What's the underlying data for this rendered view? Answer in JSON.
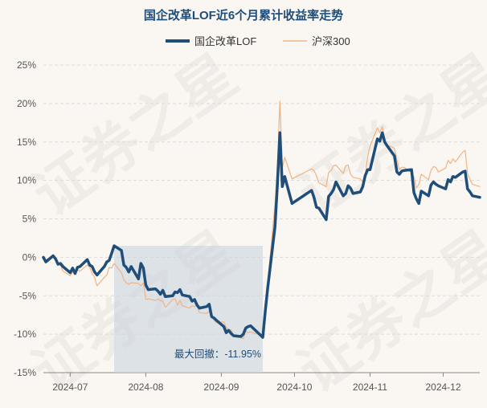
{
  "chart_data": {
    "type": "line",
    "title": "国企改革LOF近6个月累计收益率走势",
    "legend": {
      "placement": "top-center",
      "entries": [
        {
          "name": "国企改革LOF",
          "color": "#1f4e7a"
        },
        {
          "name": "沪深300",
          "color": "#f0b483"
        }
      ]
    },
    "x_ticks": [
      "2024-07",
      "2024-08",
      "2024-09",
      "2024-10",
      "2024-11",
      "2024-12"
    ],
    "y_ticks": [
      "25%",
      "20%",
      "15%",
      "10%",
      "5%",
      "0%",
      "-5%",
      "-10%",
      "-15%"
    ],
    "ylim": [
      -15,
      25
    ],
    "grid": true,
    "date_range": [
      "2024-06-20",
      "2024-12-16"
    ],
    "drawdown": {
      "label": "最大回撤：-11.95%",
      "start": "2024-07-19",
      "end": "2024-09-18",
      "fill_color": "#c9d3dd"
    },
    "series": [
      {
        "name": "国企改革LOF",
        "color": "#1f4e7a",
        "points": [
          [
            "2024-06-20",
            0.0
          ],
          [
            "2024-06-21",
            -0.6
          ],
          [
            "2024-06-24",
            0.2
          ],
          [
            "2024-06-25",
            -0.2
          ],
          [
            "2024-06-26",
            -0.9
          ],
          [
            "2024-06-27",
            -0.8
          ],
          [
            "2024-06-28",
            -1.2
          ],
          [
            "2024-07-01",
            -2.0
          ],
          [
            "2024-07-02",
            -1.4
          ],
          [
            "2024-07-03",
            -2.1
          ],
          [
            "2024-07-04",
            -1.3
          ],
          [
            "2024-07-05",
            -1.2
          ],
          [
            "2024-07-08",
            -0.3
          ],
          [
            "2024-07-09",
            -1.0
          ],
          [
            "2024-07-10",
            -1.2
          ],
          [
            "2024-07-11",
            -1.9
          ],
          [
            "2024-07-12",
            -2.3
          ],
          [
            "2024-07-15",
            -1.2
          ],
          [
            "2024-07-16",
            -0.6
          ],
          [
            "2024-07-17",
            -0.4
          ],
          [
            "2024-07-18",
            0.5
          ],
          [
            "2024-07-19",
            1.5
          ],
          [
            "2024-07-22",
            0.9
          ],
          [
            "2024-07-23",
            -1.0
          ],
          [
            "2024-07-24",
            -1.3
          ],
          [
            "2024-07-25",
            -1.9
          ],
          [
            "2024-07-26",
            -1.2
          ],
          [
            "2024-07-29",
            -2.8
          ],
          [
            "2024-07-30",
            -0.8
          ],
          [
            "2024-07-31",
            -1.4
          ],
          [
            "2024-08-01",
            -3.6
          ],
          [
            "2024-08-02",
            -4.2
          ],
          [
            "2024-08-05",
            -4.1
          ],
          [
            "2024-08-06",
            -4.4
          ],
          [
            "2024-08-07",
            -4.8
          ],
          [
            "2024-08-08",
            -4.3
          ],
          [
            "2024-08-09",
            -5.1
          ],
          [
            "2024-08-12",
            -5.0
          ],
          [
            "2024-08-13",
            -4.5
          ],
          [
            "2024-08-14",
            -4.6
          ],
          [
            "2024-08-15",
            -4.2
          ],
          [
            "2024-08-16",
            -4.9
          ],
          [
            "2024-08-19",
            -5.1
          ],
          [
            "2024-08-20",
            -5.7
          ],
          [
            "2024-08-21",
            -5.5
          ],
          [
            "2024-08-22",
            -6.2
          ],
          [
            "2024-08-23",
            -6.6
          ],
          [
            "2024-08-26",
            -6.4
          ],
          [
            "2024-08-27",
            -6.1
          ],
          [
            "2024-08-28",
            -7.7
          ],
          [
            "2024-08-29",
            -7.9
          ],
          [
            "2024-08-30",
            -8.2
          ],
          [
            "2024-09-02",
            -9.0
          ],
          [
            "2024-09-03",
            -9.8
          ],
          [
            "2024-09-04",
            -9.5
          ],
          [
            "2024-09-05",
            -9.9
          ],
          [
            "2024-09-06",
            -10.2
          ],
          [
            "2024-09-09",
            -10.3
          ],
          [
            "2024-09-10",
            -10.0
          ],
          [
            "2024-09-11",
            -9.2
          ],
          [
            "2024-09-12",
            -9.0
          ],
          [
            "2024-09-13",
            -8.9
          ],
          [
            "2024-09-18",
            -10.4
          ],
          [
            "2024-09-19",
            -7.0
          ],
          [
            "2024-09-20",
            -4.0
          ],
          [
            "2024-09-23",
            4.0
          ],
          [
            "2024-09-24",
            9.5
          ],
          [
            "2024-09-25",
            16.2
          ],
          [
            "2024-09-26",
            9.2
          ],
          [
            "2024-09-27",
            10.5
          ],
          [
            "2024-09-30",
            7.0
          ],
          [
            "2024-10-08",
            8.7
          ],
          [
            "2024-10-09",
            7.8
          ],
          [
            "2024-10-10",
            6.5
          ],
          [
            "2024-10-11",
            6.4
          ],
          [
            "2024-10-14",
            4.9
          ],
          [
            "2024-10-15",
            7.9
          ],
          [
            "2024-10-16",
            8.3
          ],
          [
            "2024-10-17",
            8.8
          ],
          [
            "2024-10-18",
            9.8
          ],
          [
            "2024-10-21",
            8.0
          ],
          [
            "2024-10-22",
            8.3
          ],
          [
            "2024-10-23",
            9.3
          ],
          [
            "2024-10-24",
            9.0
          ],
          [
            "2024-10-25",
            8.3
          ],
          [
            "2024-10-28",
            8.5
          ],
          [
            "2024-10-29",
            9.2
          ],
          [
            "2024-10-30",
            10.6
          ],
          [
            "2024-10-31",
            11.4
          ],
          [
            "2024-11-01",
            11.4
          ],
          [
            "2024-11-04",
            15.4
          ],
          [
            "2024-11-05",
            15.1
          ],
          [
            "2024-11-06",
            16.2
          ],
          [
            "2024-11-07",
            15.0
          ],
          [
            "2024-11-08",
            14.5
          ],
          [
            "2024-11-11",
            13.2
          ],
          [
            "2024-11-12",
            11.1
          ],
          [
            "2024-11-13",
            10.8
          ],
          [
            "2024-11-14",
            11.2
          ],
          [
            "2024-11-15",
            11.3
          ],
          [
            "2024-11-18",
            11.4
          ],
          [
            "2024-11-19",
            8.4
          ],
          [
            "2024-11-20",
            7.6
          ],
          [
            "2024-11-21",
            7.0
          ],
          [
            "2024-11-22",
            8.6
          ],
          [
            "2024-11-25",
            8.0
          ],
          [
            "2024-11-26",
            9.4
          ],
          [
            "2024-11-27",
            9.8
          ],
          [
            "2024-11-28",
            9.5
          ],
          [
            "2024-11-29",
            9.3
          ],
          [
            "2024-12-02",
            8.9
          ],
          [
            "2024-12-03",
            10.1
          ],
          [
            "2024-12-04",
            9.8
          ],
          [
            "2024-12-05",
            10.5
          ],
          [
            "2024-12-06",
            10.4
          ],
          [
            "2024-12-09",
            11.1
          ],
          [
            "2024-12-10",
            11.2
          ],
          [
            "2024-12-11",
            8.9
          ],
          [
            "2024-12-12",
            8.5
          ],
          [
            "2024-12-13",
            8.0
          ],
          [
            "2024-12-16",
            7.8
          ]
        ]
      },
      {
        "name": "沪深300",
        "color": "#f0b483",
        "points": [
          [
            "2024-06-20",
            0.0
          ],
          [
            "2024-06-21",
            -0.3
          ],
          [
            "2024-06-24",
            0.1
          ],
          [
            "2024-06-25",
            -0.5
          ],
          [
            "2024-06-26",
            -0.7
          ],
          [
            "2024-06-27",
            -1.0
          ],
          [
            "2024-06-28",
            -1.8
          ],
          [
            "2024-07-01",
            -2.4
          ],
          [
            "2024-07-02",
            -1.9
          ],
          [
            "2024-07-03",
            -2.0
          ],
          [
            "2024-07-04",
            -1.6
          ],
          [
            "2024-07-05",
            -1.8
          ],
          [
            "2024-07-08",
            -1.0
          ],
          [
            "2024-07-09",
            -1.3
          ],
          [
            "2024-07-10",
            -2.1
          ],
          [
            "2024-07-11",
            -2.6
          ],
          [
            "2024-07-12",
            -3.7
          ],
          [
            "2024-07-15",
            -2.6
          ],
          [
            "2024-07-16",
            -2.3
          ],
          [
            "2024-07-17",
            -1.3
          ],
          [
            "2024-07-18",
            -1.4
          ],
          [
            "2024-07-19",
            -0.8
          ],
          [
            "2024-07-22",
            -2.0
          ],
          [
            "2024-07-23",
            -2.9
          ],
          [
            "2024-07-24",
            -3.3
          ],
          [
            "2024-07-25",
            -3.5
          ],
          [
            "2024-07-26",
            -3.3
          ],
          [
            "2024-07-29",
            -3.4
          ],
          [
            "2024-07-30",
            -3.7
          ],
          [
            "2024-07-31",
            -3.3
          ],
          [
            "2024-08-01",
            -5.5
          ],
          [
            "2024-08-02",
            -5.4
          ],
          [
            "2024-08-05",
            -5.6
          ],
          [
            "2024-08-06",
            -5.4
          ],
          [
            "2024-08-07",
            -5.6
          ],
          [
            "2024-08-08",
            -5.7
          ],
          [
            "2024-08-09",
            -6.5
          ],
          [
            "2024-08-12",
            -5.5
          ],
          [
            "2024-08-13",
            -5.4
          ],
          [
            "2024-08-14",
            -6.2
          ],
          [
            "2024-08-15",
            -5.6
          ],
          [
            "2024-08-16",
            -6.3
          ],
          [
            "2024-08-19",
            -6.6
          ],
          [
            "2024-08-20",
            -6.3
          ],
          [
            "2024-08-21",
            -6.4
          ],
          [
            "2024-08-22",
            -6.2
          ],
          [
            "2024-08-23",
            -7.2
          ],
          [
            "2024-08-26",
            -7.3
          ],
          [
            "2024-08-27",
            -7.0
          ],
          [
            "2024-08-28",
            -7.3
          ],
          [
            "2024-08-29",
            -8.2
          ],
          [
            "2024-08-30",
            -8.5
          ],
          [
            "2024-09-02",
            -8.4
          ],
          [
            "2024-09-03",
            -9.1
          ],
          [
            "2024-09-04",
            -9.6
          ],
          [
            "2024-09-05",
            -9.4
          ],
          [
            "2024-09-06",
            -10.1
          ],
          [
            "2024-09-09",
            -10.4
          ],
          [
            "2024-09-10",
            -10.6
          ],
          [
            "2024-09-11",
            -9.6
          ],
          [
            "2024-09-12",
            -9.8
          ],
          [
            "2024-09-13",
            -9.7
          ],
          [
            "2024-09-18",
            -10.2
          ],
          [
            "2024-09-19",
            -7.1
          ],
          [
            "2024-09-20",
            -3.5
          ],
          [
            "2024-09-23",
            7.0
          ],
          [
            "2024-09-24",
            12.0
          ],
          [
            "2024-09-25",
            20.3
          ],
          [
            "2024-09-26",
            11.6
          ],
          [
            "2024-09-27",
            13.0
          ],
          [
            "2024-09-30",
            10.2
          ],
          [
            "2024-10-08",
            11.5
          ],
          [
            "2024-10-09",
            11.3
          ],
          [
            "2024-10-10",
            10.6
          ],
          [
            "2024-10-11",
            9.7
          ],
          [
            "2024-10-14",
            9.2
          ],
          [
            "2024-10-15",
            11.0
          ],
          [
            "2024-10-16",
            11.3
          ],
          [
            "2024-10-17",
            11.9
          ],
          [
            "2024-10-18",
            12.0
          ],
          [
            "2024-10-21",
            10.9
          ],
          [
            "2024-10-22",
            11.9
          ],
          [
            "2024-10-23",
            12.0
          ],
          [
            "2024-10-24",
            10.8
          ],
          [
            "2024-10-25",
            10.4
          ],
          [
            "2024-10-28",
            10.2
          ],
          [
            "2024-10-29",
            9.8
          ],
          [
            "2024-10-30",
            10.7
          ],
          [
            "2024-10-31",
            13.0
          ],
          [
            "2024-11-01",
            14.5
          ],
          [
            "2024-11-04",
            16.8
          ],
          [
            "2024-11-05",
            16.2
          ],
          [
            "2024-11-06",
            17.0
          ],
          [
            "2024-11-07",
            15.4
          ],
          [
            "2024-11-08",
            14.6
          ],
          [
            "2024-11-11",
            14.2
          ],
          [
            "2024-11-12",
            12.6
          ],
          [
            "2024-11-13",
            11.4
          ],
          [
            "2024-11-14",
            11.7
          ],
          [
            "2024-11-15",
            11.7
          ],
          [
            "2024-11-18",
            11.0
          ],
          [
            "2024-11-19",
            10.5
          ],
          [
            "2024-11-20",
            9.0
          ],
          [
            "2024-11-21",
            9.5
          ],
          [
            "2024-11-22",
            10.8
          ],
          [
            "2024-11-25",
            10.1
          ],
          [
            "2024-11-26",
            11.3
          ],
          [
            "2024-11-27",
            11.8
          ],
          [
            "2024-11-28",
            11.7
          ],
          [
            "2024-11-29",
            11.1
          ],
          [
            "2024-12-02",
            11.6
          ],
          [
            "2024-12-03",
            12.6
          ],
          [
            "2024-12-04",
            12.2
          ],
          [
            "2024-12-05",
            12.8
          ],
          [
            "2024-12-06",
            12.4
          ],
          [
            "2024-12-09",
            13.7
          ],
          [
            "2024-12-10",
            13.9
          ],
          [
            "2024-12-11",
            10.9
          ],
          [
            "2024-12-12",
            10.1
          ],
          [
            "2024-12-13",
            9.5
          ],
          [
            "2024-12-16",
            9.2
          ]
        ]
      }
    ]
  }
}
